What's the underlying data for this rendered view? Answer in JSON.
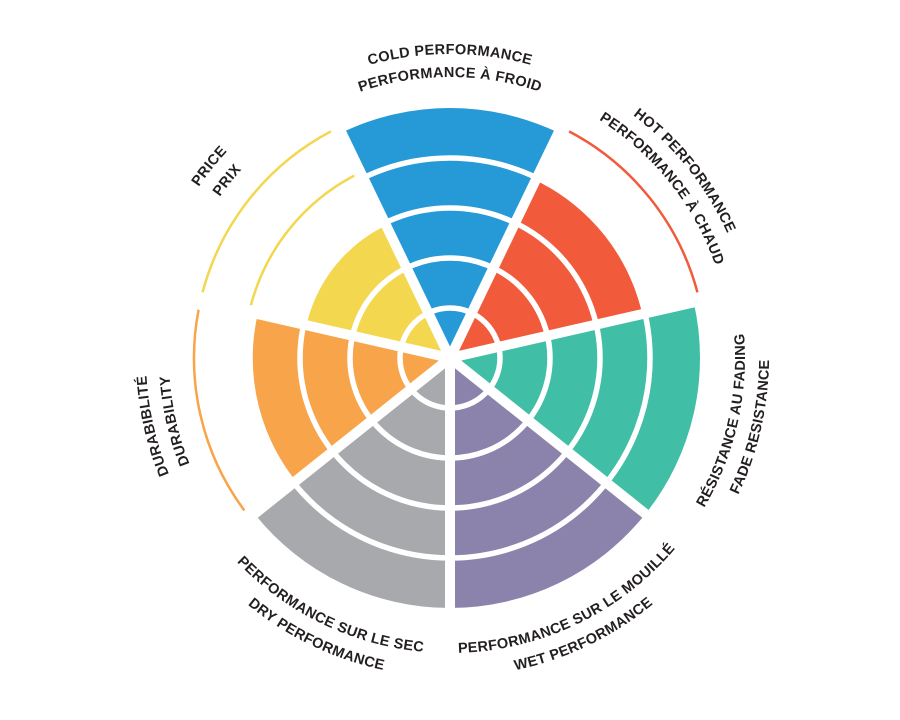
{
  "chart_data": {
    "type": "polar",
    "variant": "sector-rating-wheel",
    "title": "",
    "rings": 5,
    "scale": {
      "min": 0,
      "max": 5
    },
    "start_sector_angle_deg": -90,
    "direction": "clockwise",
    "grid": "white ring separators and radial gaps between sectors",
    "legend_position": "labels curved around wheel",
    "background": "#FFFFFF",
    "label_color": "#231F20",
    "categories": [
      {
        "id": "cold",
        "lines": [
          "COLD PERFORMANCE",
          "PERFORMANCE À FROID"
        ],
        "value": 5,
        "color": "#259AD6",
        "label_side": "top"
      },
      {
        "id": "hot",
        "lines": [
          "HOT PERFORMANCE",
          "PERFORMANCE À CHAUD"
        ],
        "value": 4,
        "color": "#F15B3B",
        "label_side": "top"
      },
      {
        "id": "fade",
        "lines": [
          "RÉSISTANCE AU FADING",
          "FADE RESISTANCE"
        ],
        "value": 5,
        "color": "#40BFA6",
        "label_side": "bottom"
      },
      {
        "id": "wet",
        "lines": [
          "PERFORMANCE SUR LE MOUILLÉ",
          "WET PERFORMANCE"
        ],
        "value": 5,
        "color": "#8B83AB",
        "label_side": "bottom"
      },
      {
        "id": "dry",
        "lines": [
          "PERFORMANCE SUR LE SEC",
          "DRY PERFORMANCE"
        ],
        "value": 5,
        "color": "#A7A9AC",
        "label_side": "bottom"
      },
      {
        "id": "durability",
        "lines": [
          "DURABIBLITÉ",
          "DURABILITY"
        ],
        "value": 4,
        "color": "#F8A44B",
        "label_side": "top"
      },
      {
        "id": "price",
        "lines": [
          "PRICE",
          "PRIX"
        ],
        "value": 3,
        "color": "#F3D74E",
        "label_side": "top"
      }
    ]
  }
}
